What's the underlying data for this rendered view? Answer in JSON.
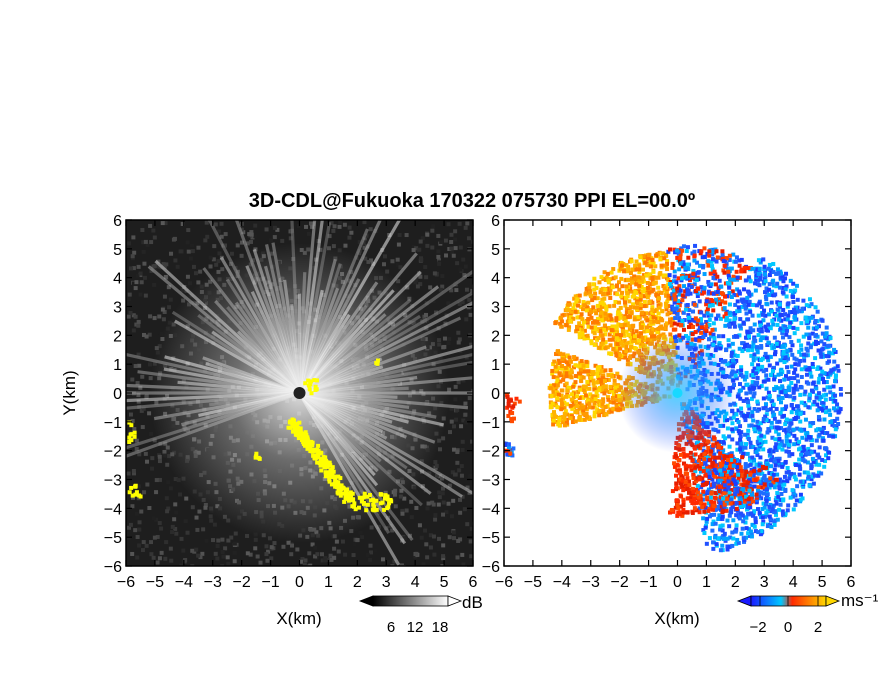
{
  "title": "3D-CDL@Fukuoka 170322 075730 PPI EL=00.0º",
  "chart_data": [
    {
      "type": "heatmap",
      "name": "reflectivity-ppi",
      "xlabel": "X(km)",
      "ylabel": "Y(km)",
      "xlim": [
        -6,
        6
      ],
      "ylim": [
        -6,
        6
      ],
      "xticks": [
        "−6",
        "−5",
        "−4",
        "−3",
        "−2",
        "−1",
        "0",
        "1",
        "2",
        "3",
        "4",
        "5",
        "6"
      ],
      "yticks": [
        "−6",
        "−5",
        "−4",
        "−3",
        "−2",
        "−1",
        "0",
        "1",
        "2",
        "3",
        "4",
        "5",
        "6"
      ],
      "colorbar": {
        "unit": "dB",
        "ticks": [
          "6",
          "12",
          "18"
        ],
        "range": [
          0,
          24
        ],
        "colors": [
          "#000000",
          "#ffffff"
        ]
      },
      "highlight_color": "#ffff00",
      "grid": false
    },
    {
      "type": "heatmap",
      "name": "doppler-velocity-ppi",
      "xlabel": "X(km)",
      "ylabel": "",
      "xlim": [
        -6,
        6
      ],
      "ylim": [
        -6,
        6
      ],
      "xticks": [
        "−6",
        "−5",
        "−4",
        "−3",
        "−2",
        "−1",
        "0",
        "1",
        "2",
        "3",
        "4",
        "5",
        "6"
      ],
      "yticks": [
        "−6",
        "−5",
        "−4",
        "−3",
        "−2",
        "−1",
        "0",
        "1",
        "2",
        "3",
        "4",
        "5",
        "6"
      ],
      "colorbar": {
        "unit": "ms⁻¹",
        "ticks": [
          "−2",
          "0",
          "2"
        ],
        "range": [
          -4,
          4
        ],
        "colors": [
          "#1a1aff",
          "#00c8ff",
          "#ff2a00",
          "#ffd700"
        ]
      },
      "grid": false
    }
  ]
}
